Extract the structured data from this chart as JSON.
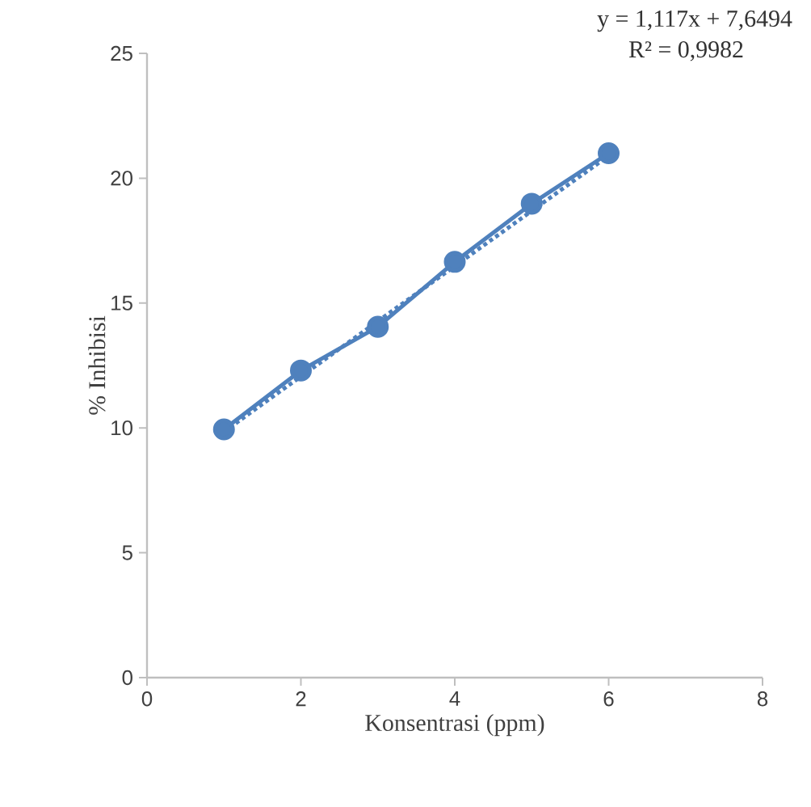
{
  "chart_data": {
    "type": "line",
    "xlabel": "Konsentrasi (ppm)",
    "ylabel": "% Inhibisi",
    "series": [
      {
        "color": "#4f81bd",
        "x": [
          1,
          2,
          3,
          4,
          5,
          6
        ],
        "values": [
          9.94,
          12.3,
          14.05,
          16.65,
          18.98,
          21.0
        ],
        "marker": "circle",
        "line_style": "solid"
      },
      {
        "type": "line",
        "color": "#4f81bd",
        "x": [
          1,
          6
        ],
        "values": [
          9.85,
          20.9
        ],
        "marker": "none",
        "line_style": "dotted"
      }
    ],
    "annotations": [
      "y = 1,117x + 7,6494",
      "R² = 0,9982"
    ],
    "xlim": [
      0,
      8
    ],
    "ylim": [
      0,
      25
    ],
    "xticks": [
      0,
      2,
      4,
      6,
      8
    ],
    "yticks": [
      0,
      5,
      10,
      15,
      20,
      25
    ],
    "grid": false
  }
}
